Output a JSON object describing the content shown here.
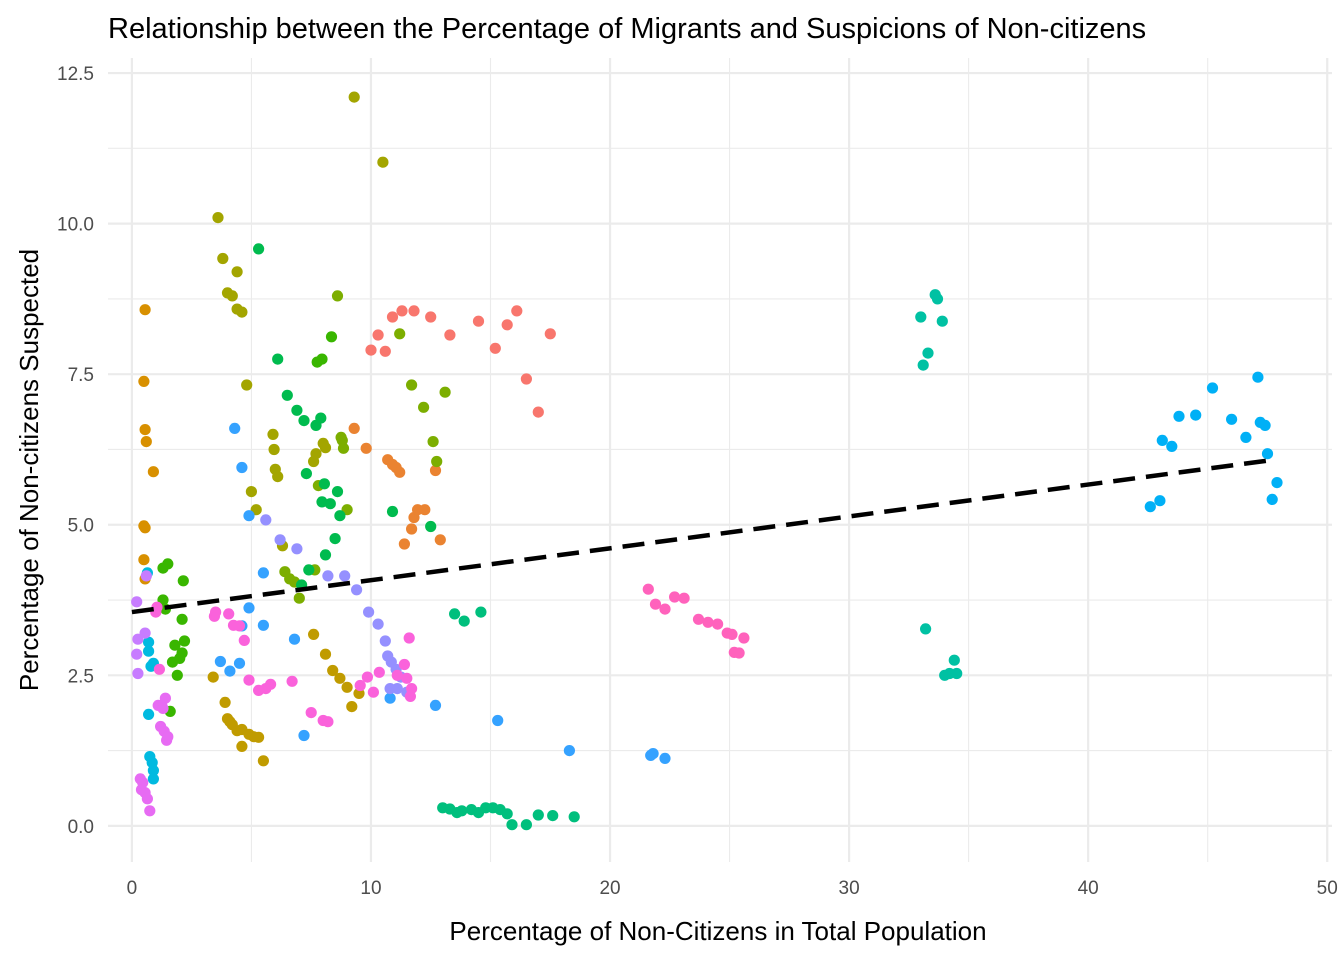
{
  "chart_data": {
    "type": "scatter",
    "title": "Relationship between the Percentage of Migrants and Suspicions of Non-citizens",
    "xlabel": "Percentage of Non-Citizens in Total Population",
    "ylabel": "Percentage of Non-citizens Suspected",
    "xlim": [
      -1,
      50.2
    ],
    "ylim": [
      -0.6,
      12.75
    ],
    "xticks": [
      0,
      10,
      20,
      30,
      40,
      50
    ],
    "xtick_labels": [
      "0",
      "10",
      "20",
      "30",
      "40",
      "50"
    ],
    "yticks": [
      0,
      2.5,
      5,
      7.5,
      10,
      12.5
    ],
    "ytick_labels": [
      "0.0",
      "2.5",
      "5.0",
      "7.5",
      "10.0",
      "12.5"
    ],
    "grid": true,
    "legend": "none",
    "trendline": {
      "style": "dashed",
      "color": "#000000",
      "x": [
        0,
        47.8
      ],
      "y": [
        3.55,
        6.08
      ]
    },
    "series": [
      {
        "color": "#F8766D",
        "points": [
          [
            10.0,
            7.9
          ],
          [
            10.3,
            8.15
          ],
          [
            10.6,
            7.88
          ],
          [
            10.9,
            8.45
          ],
          [
            11.3,
            8.55
          ],
          [
            11.8,
            8.55
          ],
          [
            12.5,
            8.45
          ],
          [
            13.3,
            8.15
          ],
          [
            14.5,
            8.38
          ],
          [
            15.2,
            7.93
          ],
          [
            15.7,
            8.32
          ],
          [
            16.1,
            8.55
          ],
          [
            16.5,
            7.42
          ],
          [
            17.0,
            6.87
          ],
          [
            17.5,
            8.17
          ]
        ]
      },
      {
        "color": "#EA8331",
        "points": [
          [
            9.3,
            6.6
          ],
          [
            9.8,
            6.27
          ],
          [
            10.7,
            6.08
          ],
          [
            10.9,
            6.0
          ],
          [
            11.05,
            5.95
          ],
          [
            11.2,
            5.87
          ],
          [
            11.4,
            4.68
          ],
          [
            11.7,
            4.93
          ],
          [
            11.8,
            5.12
          ],
          [
            11.95,
            5.25
          ],
          [
            12.25,
            5.25
          ],
          [
            12.7,
            5.9
          ],
          [
            12.9,
            4.75
          ]
        ]
      },
      {
        "color": "#D89000",
        "points": [
          [
            0.55,
            8.57
          ],
          [
            0.5,
            7.38
          ],
          [
            0.55,
            6.58
          ],
          [
            0.6,
            6.38
          ],
          [
            0.5,
            4.98
          ],
          [
            0.55,
            4.95
          ],
          [
            0.9,
            5.88
          ],
          [
            0.5,
            4.42
          ],
          [
            0.55,
            4.1
          ]
        ]
      },
      {
        "color": "#C09B00",
        "points": [
          [
            3.4,
            2.47
          ],
          [
            3.9,
            2.05
          ],
          [
            4.0,
            1.78
          ],
          [
            4.1,
            1.73
          ],
          [
            4.2,
            1.68
          ],
          [
            4.4,
            1.58
          ],
          [
            4.6,
            1.6
          ],
          [
            4.6,
            1.32
          ],
          [
            4.9,
            1.52
          ],
          [
            5.1,
            1.48
          ],
          [
            5.3,
            1.47
          ],
          [
            5.5,
            1.08
          ],
          [
            7.6,
            3.18
          ],
          [
            8.1,
            2.85
          ],
          [
            8.4,
            2.58
          ],
          [
            8.7,
            2.45
          ],
          [
            9.0,
            2.3
          ],
          [
            9.2,
            1.98
          ],
          [
            9.5,
            2.2
          ]
        ]
      },
      {
        "color": "#A3A500",
        "points": [
          [
            3.6,
            10.1
          ],
          [
            3.8,
            9.42
          ],
          [
            4.0,
            8.85
          ],
          [
            4.2,
            8.8
          ],
          [
            4.4,
            9.2
          ],
          [
            4.4,
            8.58
          ],
          [
            4.6,
            8.53
          ],
          [
            4.8,
            7.32
          ],
          [
            5.0,
            5.55
          ],
          [
            5.2,
            5.25
          ],
          [
            5.9,
            6.5
          ],
          [
            5.95,
            6.25
          ],
          [
            6.0,
            5.92
          ],
          [
            6.1,
            5.8
          ],
          [
            6.3,
            4.65
          ],
          [
            7.6,
            6.05
          ],
          [
            7.7,
            6.18
          ],
          [
            8.0,
            6.35
          ],
          [
            8.1,
            6.28
          ],
          [
            9.3,
            12.1
          ],
          [
            10.5,
            11.02
          ]
        ]
      },
      {
        "color": "#7CAE00",
        "points": [
          [
            8.6,
            8.8
          ],
          [
            8.75,
            6.45
          ],
          [
            8.8,
            6.4
          ],
          [
            8.85,
            6.27
          ],
          [
            9.0,
            5.25
          ],
          [
            7.8,
            5.65
          ],
          [
            7.65,
            4.25
          ],
          [
            7.0,
            3.78
          ],
          [
            6.8,
            4.05
          ],
          [
            6.6,
            4.1
          ],
          [
            6.4,
            4.22
          ],
          [
            11.2,
            8.17
          ],
          [
            11.7,
            7.32
          ],
          [
            12.2,
            6.95
          ],
          [
            12.6,
            6.38
          ],
          [
            12.75,
            6.05
          ],
          [
            13.1,
            7.2
          ]
        ]
      },
      {
        "color": "#39B600",
        "points": [
          [
            1.3,
            4.28
          ],
          [
            1.5,
            4.35
          ],
          [
            1.7,
            2.72
          ],
          [
            1.9,
            2.5
          ],
          [
            2.1,
            3.43
          ],
          [
            2.15,
            4.07
          ],
          [
            2.2,
            3.07
          ],
          [
            2.1,
            2.87
          ],
          [
            2.0,
            2.78
          ],
          [
            1.8,
            3.0
          ],
          [
            1.6,
            1.9
          ],
          [
            1.3,
            3.75
          ],
          [
            1.4,
            3.6
          ],
          [
            7.75,
            7.7
          ],
          [
            7.95,
            7.75
          ],
          [
            8.35,
            8.12
          ]
        ]
      },
      {
        "color": "#00BB4E",
        "points": [
          [
            5.3,
            9.58
          ],
          [
            6.1,
            7.75
          ],
          [
            6.5,
            7.15
          ],
          [
            6.9,
            6.9
          ],
          [
            7.2,
            6.73
          ],
          [
            7.7,
            6.65
          ],
          [
            7.9,
            6.77
          ],
          [
            7.3,
            5.85
          ],
          [
            7.95,
            5.38
          ],
          [
            8.05,
            5.68
          ],
          [
            8.3,
            5.35
          ],
          [
            8.5,
            4.77
          ],
          [
            8.6,
            5.55
          ],
          [
            8.7,
            5.15
          ],
          [
            7.4,
            4.25
          ],
          [
            7.1,
            4.0
          ],
          [
            8.1,
            4.5
          ],
          [
            10.9,
            5.22
          ],
          [
            12.5,
            4.97
          ]
        ]
      },
      {
        "color": "#00BF7D",
        "points": [
          [
            13.0,
            0.3
          ],
          [
            13.3,
            0.28
          ],
          [
            13.6,
            0.22
          ],
          [
            13.8,
            0.25
          ],
          [
            14.2,
            0.27
          ],
          [
            14.5,
            0.22
          ],
          [
            14.8,
            0.3
          ],
          [
            15.1,
            0.3
          ],
          [
            15.4,
            0.27
          ],
          [
            15.7,
            0.2
          ],
          [
            15.9,
            0.02
          ],
          [
            16.5,
            0.02
          ],
          [
            17.0,
            0.18
          ],
          [
            17.6,
            0.17
          ],
          [
            18.5,
            0.15
          ],
          [
            13.5,
            3.52
          ],
          [
            13.9,
            3.4
          ],
          [
            14.6,
            3.55
          ]
        ]
      },
      {
        "color": "#00C1A3",
        "points": [
          [
            33.0,
            8.45
          ],
          [
            33.3,
            7.85
          ],
          [
            33.6,
            8.82
          ],
          [
            33.7,
            8.75
          ],
          [
            33.9,
            8.38
          ],
          [
            33.1,
            7.65
          ],
          [
            33.2,
            3.27
          ],
          [
            34.0,
            2.5
          ],
          [
            34.2,
            2.53
          ],
          [
            34.5,
            2.53
          ],
          [
            34.4,
            2.75
          ]
        ]
      },
      {
        "color": "#00BAE0",
        "points": [
          [
            0.65,
            4.2
          ],
          [
            0.7,
            3.05
          ],
          [
            0.8,
            2.65
          ],
          [
            0.7,
            2.9
          ],
          [
            0.75,
            1.15
          ],
          [
            0.85,
            1.05
          ],
          [
            0.9,
            0.92
          ],
          [
            0.9,
            0.78
          ],
          [
            0.7,
            1.85
          ],
          [
            0.9,
            2.7
          ]
        ]
      },
      {
        "color": "#00B0F6",
        "points": [
          [
            43.0,
            5.4
          ],
          [
            43.5,
            6.3
          ],
          [
            43.1,
            6.4
          ],
          [
            43.8,
            6.8
          ],
          [
            42.6,
            5.3
          ],
          [
            44.5,
            6.82
          ],
          [
            45.2,
            7.27
          ],
          [
            46.0,
            6.75
          ],
          [
            46.6,
            6.45
          ],
          [
            47.1,
            7.45
          ],
          [
            47.2,
            6.7
          ],
          [
            47.4,
            6.65
          ],
          [
            47.5,
            6.18
          ],
          [
            47.7,
            5.42
          ],
          [
            47.9,
            5.7
          ]
        ]
      },
      {
        "color": "#35A2FF",
        "points": [
          [
            4.3,
            6.6
          ],
          [
            4.6,
            5.95
          ],
          [
            4.9,
            5.15
          ],
          [
            5.5,
            4.2
          ],
          [
            4.9,
            3.62
          ],
          [
            5.5,
            3.33
          ],
          [
            6.8,
            3.1
          ],
          [
            7.2,
            1.5
          ],
          [
            10.8,
            2.12
          ],
          [
            12.7,
            2.0
          ],
          [
            15.3,
            1.75
          ],
          [
            18.3,
            1.25
          ],
          [
            21.8,
            1.2
          ],
          [
            22.3,
            1.12
          ],
          [
            21.7,
            1.17
          ],
          [
            3.7,
            2.73
          ],
          [
            4.1,
            2.57
          ],
          [
            4.5,
            2.7
          ],
          [
            4.6,
            3.32
          ]
        ]
      },
      {
        "color": "#9590FF",
        "points": [
          [
            5.6,
            5.08
          ],
          [
            6.2,
            4.75
          ],
          [
            6.9,
            4.6
          ],
          [
            8.2,
            4.15
          ],
          [
            8.9,
            4.15
          ],
          [
            9.4,
            3.92
          ],
          [
            9.9,
            3.55
          ],
          [
            10.3,
            3.35
          ],
          [
            10.6,
            3.07
          ],
          [
            10.7,
            2.82
          ],
          [
            10.85,
            2.72
          ],
          [
            11.05,
            2.6
          ],
          [
            11.25,
            2.47
          ],
          [
            10.8,
            2.28
          ],
          [
            11.1,
            2.28
          ],
          [
            11.5,
            2.22
          ]
        ]
      },
      {
        "color": "#C77CFF",
        "points": [
          [
            0.2,
            3.72
          ],
          [
            0.25,
            3.1
          ],
          [
            0.2,
            2.85
          ],
          [
            0.25,
            2.53
          ],
          [
            0.6,
            4.15
          ],
          [
            0.55,
            3.2
          ]
        ]
      },
      {
        "color": "#E76BF3",
        "points": [
          [
            0.35,
            0.78
          ],
          [
            0.45,
            0.72
          ],
          [
            0.4,
            0.6
          ],
          [
            0.55,
            0.55
          ],
          [
            0.65,
            0.45
          ],
          [
            0.75,
            0.25
          ],
          [
            1.1,
            2.0
          ],
          [
            1.2,
            1.65
          ],
          [
            1.35,
            1.57
          ],
          [
            1.45,
            1.42
          ],
          [
            1.5,
            1.48
          ],
          [
            1.25,
            2.0
          ],
          [
            1.4,
            2.12
          ],
          [
            1.3,
            1.95
          ]
        ]
      },
      {
        "color": "#FA62DB",
        "points": [
          [
            3.45,
            3.48
          ],
          [
            3.5,
            3.55
          ],
          [
            4.05,
            3.52
          ],
          [
            4.25,
            3.33
          ],
          [
            4.5,
            3.32
          ],
          [
            4.7,
            3.08
          ],
          [
            4.9,
            2.42
          ],
          [
            5.3,
            2.25
          ],
          [
            5.6,
            2.28
          ],
          [
            5.8,
            2.35
          ],
          [
            6.7,
            2.4
          ],
          [
            7.5,
            1.88
          ],
          [
            8.0,
            1.75
          ],
          [
            8.2,
            1.73
          ],
          [
            9.55,
            2.33
          ],
          [
            9.85,
            2.47
          ],
          [
            10.1,
            2.22
          ],
          [
            10.35,
            2.55
          ],
          [
            11.1,
            2.5
          ],
          [
            11.4,
            2.68
          ],
          [
            11.5,
            2.45
          ],
          [
            11.6,
            3.12
          ],
          [
            11.7,
            2.28
          ],
          [
            11.65,
            2.15
          ],
          [
            1.0,
            3.55
          ],
          [
            1.05,
            3.63
          ],
          [
            1.15,
            2.6
          ]
        ]
      },
      {
        "color": "#FF62BC",
        "points": [
          [
            21.6,
            3.93
          ],
          [
            21.9,
            3.68
          ],
          [
            22.3,
            3.6
          ],
          [
            22.7,
            3.8
          ],
          [
            23.1,
            3.78
          ],
          [
            23.7,
            3.43
          ],
          [
            24.1,
            3.38
          ],
          [
            24.5,
            3.35
          ],
          [
            24.9,
            3.2
          ],
          [
            25.1,
            3.18
          ],
          [
            25.2,
            2.88
          ],
          [
            25.4,
            2.87
          ],
          [
            25.6,
            3.12
          ]
        ]
      }
    ]
  }
}
